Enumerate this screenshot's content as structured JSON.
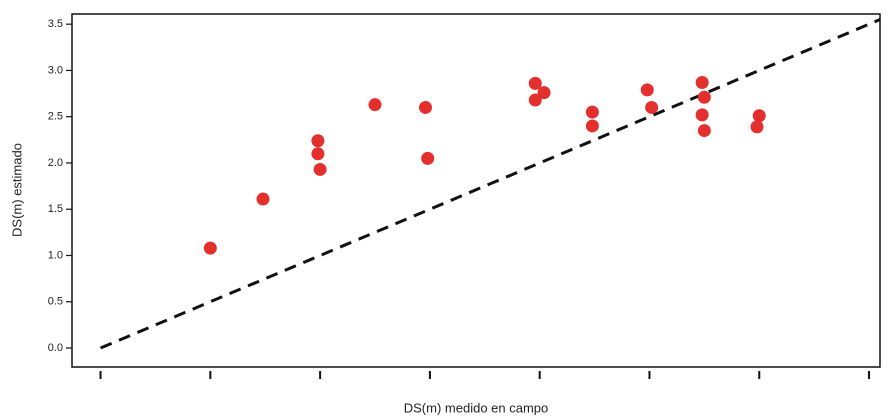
{
  "chart_data": {
    "type": "scatter",
    "x_label": "DS(m) medido en campo",
    "y_label": "DS(m) estimado",
    "x": [
      0.5,
      0.74,
      0.99,
      0.99,
      1.0,
      1.25,
      1.48,
      1.49,
      1.98,
      1.98,
      2.02,
      2.24,
      2.24,
      2.49,
      2.51,
      2.74,
      2.75,
      2.74,
      2.75,
      2.99,
      3.0
    ],
    "y": [
      1.08,
      1.61,
      2.24,
      2.1,
      1.93,
      2.63,
      2.6,
      2.05,
      2.86,
      2.68,
      2.76,
      2.55,
      2.4,
      2.79,
      2.6,
      2.87,
      2.71,
      2.52,
      2.35,
      2.39,
      2.51
    ],
    "color": "#e3302f",
    "reference_line": {
      "x": [
        0,
        3.55
      ],
      "y": [
        0,
        3.55
      ],
      "color": "#111111",
      "dashed": true
    },
    "xlim": [
      -0.13,
      3.55
    ],
    "ylim": [
      -0.205,
      3.61
    ],
    "xticks": [
      0,
      0.5,
      1,
      1.5,
      2,
      2.5,
      3,
      3.5
    ],
    "show_xtick_labels": false,
    "yticks": [
      {
        "value": 0,
        "label": "0.0"
      },
      0.5,
      {
        "value": 1,
        "label": "1.0"
      },
      1.5,
      {
        "value": 2,
        "label": "2.0"
      },
      2.5,
      {
        "value": 3,
        "label": "3.0"
      },
      3.5
    ]
  }
}
